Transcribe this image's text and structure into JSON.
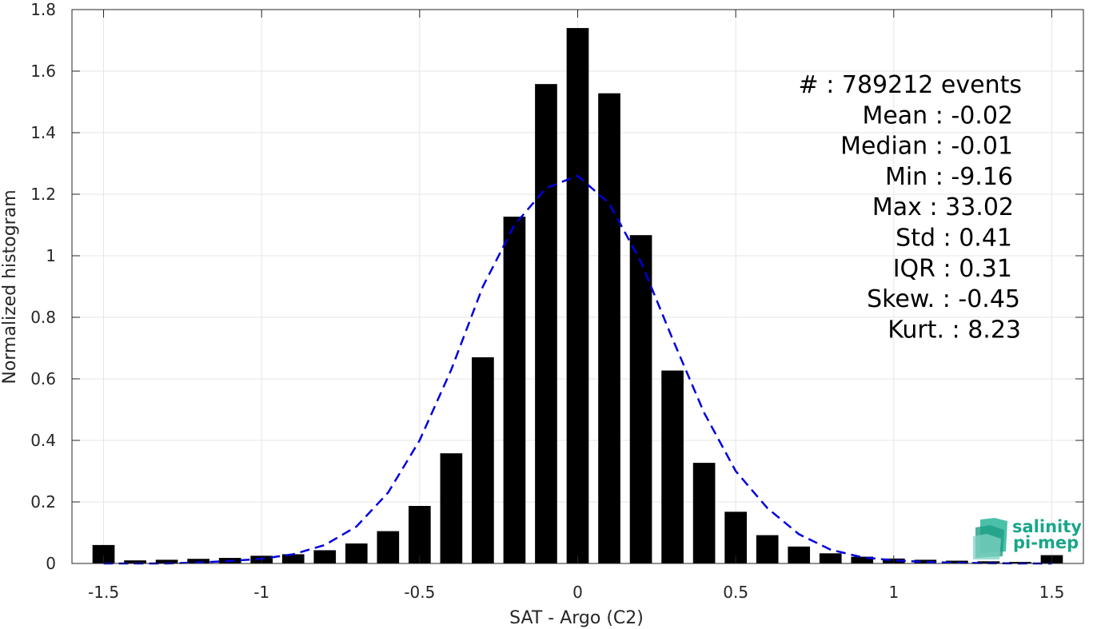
{
  "chart_data": {
    "type": "bar",
    "xlabel": "SAT - Argo (C2)",
    "ylabel": "Normalized histogram",
    "xlim": [
      -1.6,
      1.6
    ],
    "ylim": [
      0,
      1.8
    ],
    "grid": true,
    "x_ticks": [
      -1.5,
      -1,
      -0.5,
      0,
      0.5,
      1,
      1.5
    ],
    "x_tick_labels": [
      "-1.5",
      "-1",
      "-0.5",
      "0",
      "0.5",
      "1",
      "1.5"
    ],
    "y_ticks": [
      0,
      0.2,
      0.4,
      0.6,
      0.8,
      1,
      1.2,
      1.4,
      1.6,
      1.8
    ],
    "y_tick_labels": [
      "0",
      "0.2",
      "0.4",
      "0.6",
      "0.8",
      "1",
      "1.2",
      "1.4",
      "1.6",
      "1.8"
    ],
    "bar_color": "#000000",
    "fit_color": "#0000dd",
    "bars": {
      "x": [
        -1.5,
        -1.4,
        -1.3,
        -1.2,
        -1.1,
        -1.0,
        -0.9,
        -0.8,
        -0.7,
        -0.6,
        -0.5,
        -0.4,
        -0.3,
        -0.2,
        -0.1,
        0.0,
        0.1,
        0.2,
        0.3,
        0.4,
        0.5,
        0.6,
        0.7,
        0.8,
        0.9,
        1.0,
        1.1,
        1.2,
        1.3,
        1.4,
        1.5
      ],
      "values": [
        0.06,
        0.01,
        0.012,
        0.015,
        0.018,
        0.025,
        0.03,
        0.043,
        0.065,
        0.105,
        0.187,
        0.358,
        0.67,
        1.127,
        1.558,
        1.74,
        1.528,
        1.067,
        0.627,
        0.327,
        0.168,
        0.092,
        0.055,
        0.033,
        0.022,
        0.016,
        0.012,
        0.009,
        0.007,
        0.005,
        0.027
      ]
    },
    "fit": {
      "x": [
        -1.5,
        -1.4,
        -1.3,
        -1.2,
        -1.1,
        -1.0,
        -0.9,
        -0.8,
        -0.7,
        -0.6,
        -0.5,
        -0.4,
        -0.3,
        -0.2,
        -0.1,
        0.0,
        0.1,
        0.2,
        0.3,
        0.4,
        0.5,
        0.6,
        0.7,
        0.8,
        0.9,
        1.0,
        1.1,
        1.2,
        1.3,
        1.4,
        1.5
      ],
      "values": [
        0.0,
        0.0,
        0.0,
        0.003,
        0.008,
        0.015,
        0.03,
        0.06,
        0.12,
        0.23,
        0.4,
        0.63,
        0.9,
        1.1,
        1.22,
        1.26,
        1.17,
        0.98,
        0.73,
        0.49,
        0.3,
        0.18,
        0.095,
        0.045,
        0.02,
        0.01,
        0.005,
        0.002,
        0.001,
        0.0,
        0.0
      ]
    },
    "annotations": [
      "#  : 789212 events",
      "Mean : -0.02",
      "Median : -0.01",
      "Min : -9.16",
      "Max : 33.02",
      "Std : 0.41",
      "IQR : 0.31",
      "Skew. : -0.45",
      "Kurt. : 8.23"
    ]
  },
  "logo": {
    "line1": "salinity",
    "line2": "pi-mep",
    "color": "#1aa68a"
  }
}
